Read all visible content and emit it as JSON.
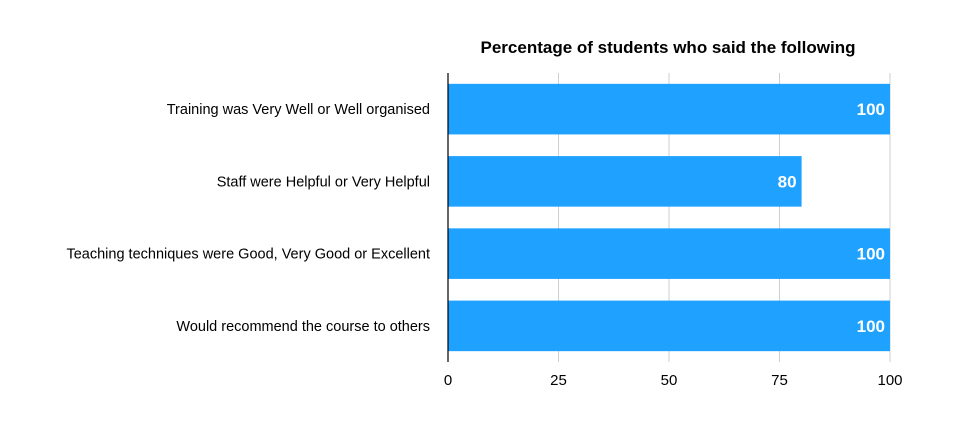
{
  "chart_data": {
    "type": "bar",
    "orientation": "horizontal",
    "title": "Percentage of students who said the following",
    "categories": [
      "Training was Very Well or Well organised",
      "Staff were Helpful or Very Helpful",
      "Teaching techniques were Good, Very Good or Excellent",
      "Would recommend the course to others"
    ],
    "values": [
      100,
      80,
      100,
      100
    ],
    "xlim": [
      0,
      100
    ],
    "xticks": [
      "0",
      "25",
      "50",
      "75",
      "100"
    ],
    "xlabel": "",
    "ylabel": "",
    "grid": true,
    "legend": "none",
    "bar_color": "#1fa2ff",
    "data_label_color": "#ffffff"
  }
}
